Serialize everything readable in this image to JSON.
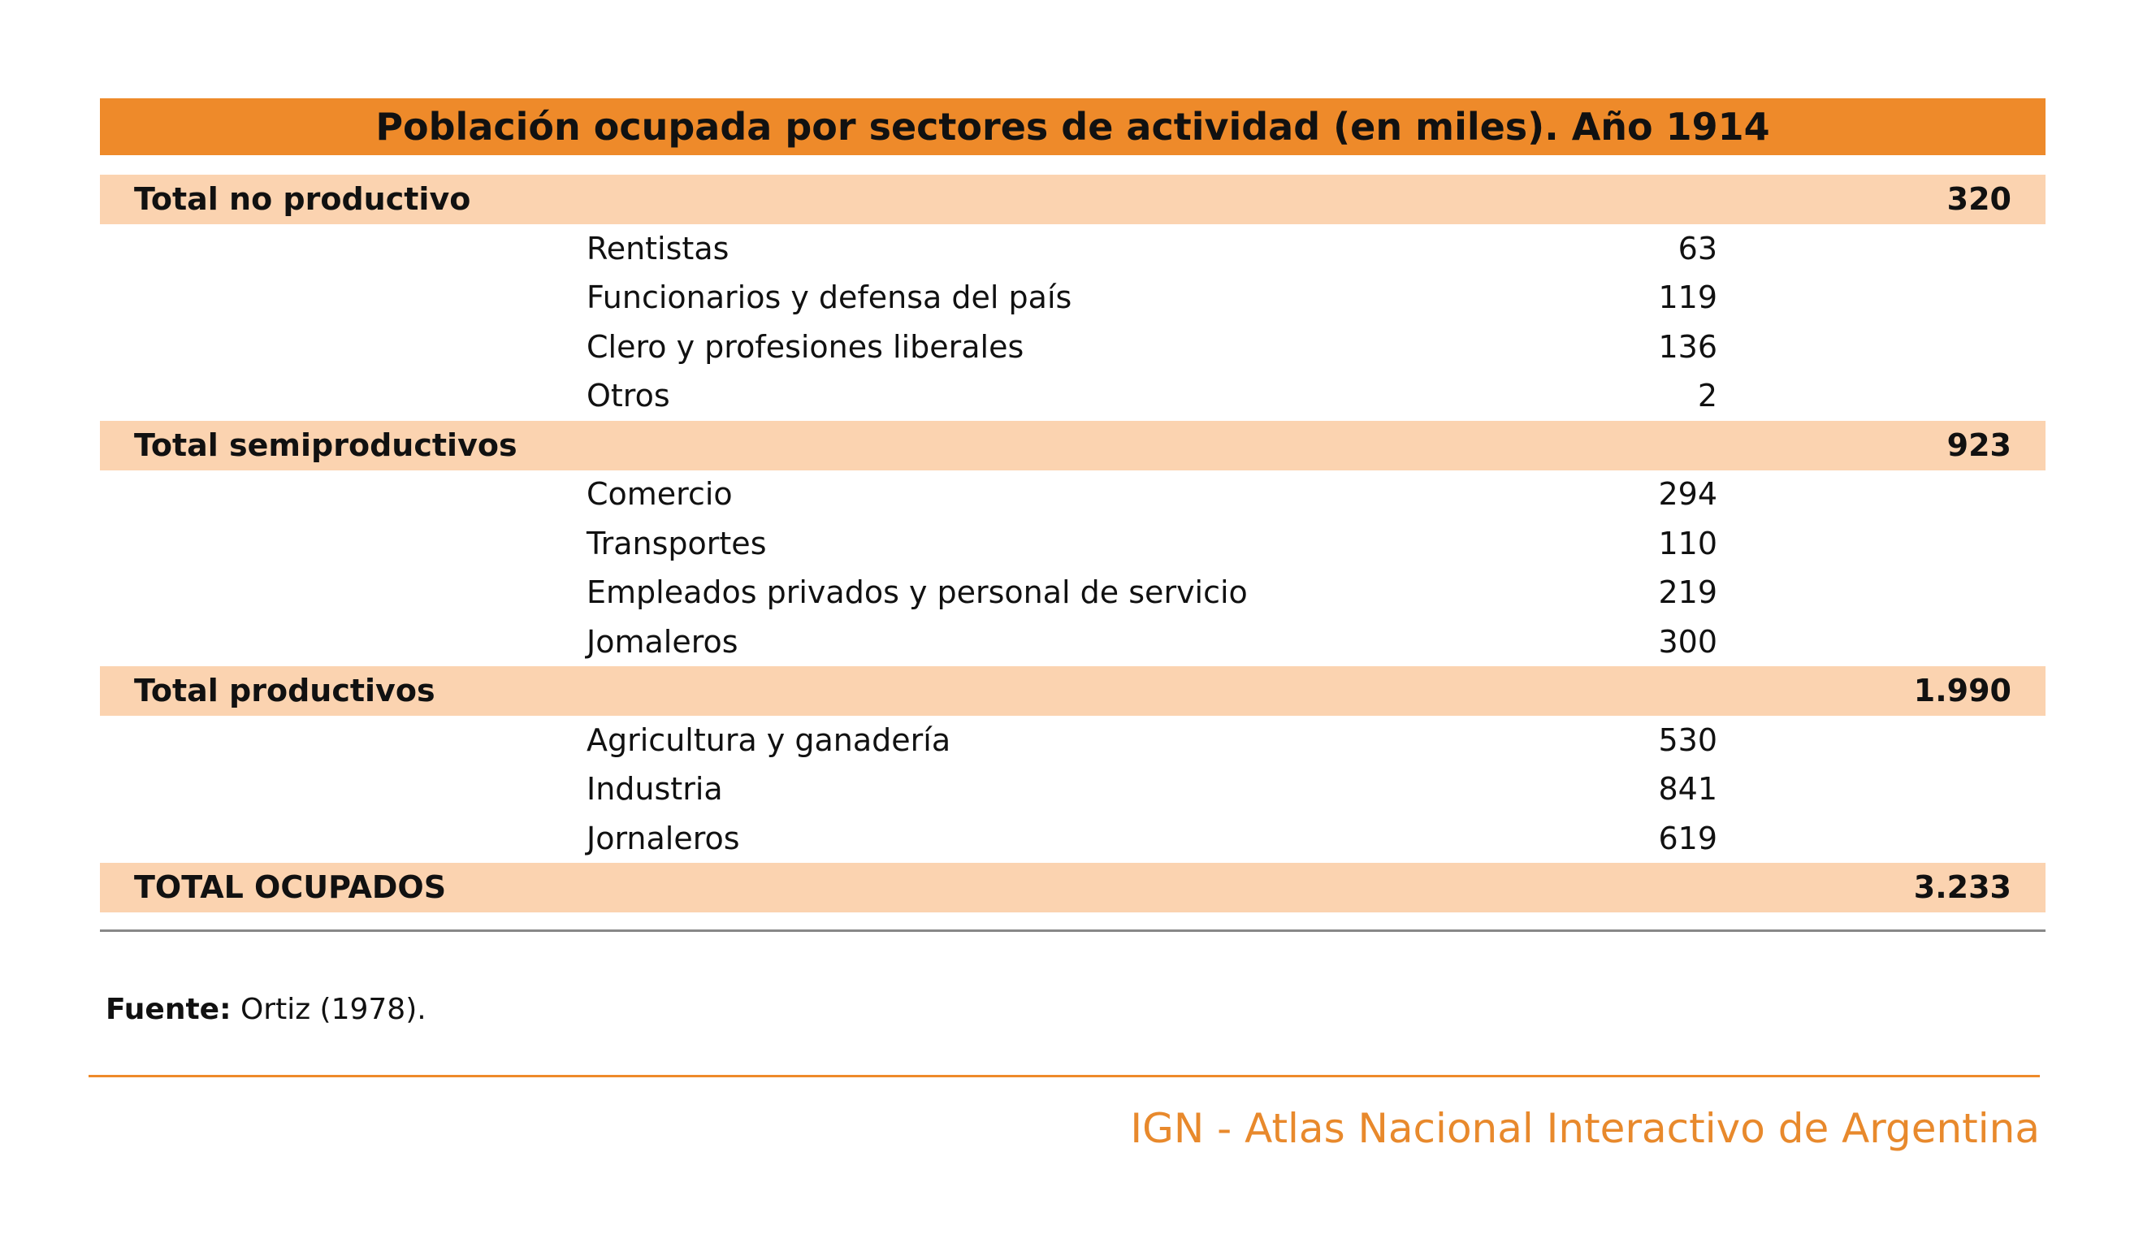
{
  "table": {
    "title": "Población ocupada por sectores de actividad (en miles). Año 1914",
    "groups": [
      {
        "label": "Total no productivo",
        "total": "320",
        "items": [
          {
            "label": "Rentistas",
            "value": "63"
          },
          {
            "label": "Funcionarios y defensa del país",
            "value": "119"
          },
          {
            "label": "Clero y profesiones liberales",
            "value": "136"
          },
          {
            "label": "Otros",
            "value": "2"
          }
        ]
      },
      {
        "label": "Total semiproductivos",
        "total": "923",
        "items": [
          {
            "label": "Comercio",
            "value": "294"
          },
          {
            "label": "Transportes",
            "value": "110"
          },
          {
            "label": "Empleados privados y personal de servicio",
            "value": "219"
          },
          {
            "label": "Jomaleros",
            "value": "300"
          }
        ]
      },
      {
        "label": "Total productivos",
        "total": "1.990",
        "items": [
          {
            "label": "Agricultura y ganadería",
            "value": "530"
          },
          {
            "label": "Industria",
            "value": "841"
          },
          {
            "label": "Jornaleros",
            "value": "619"
          }
        ]
      }
    ],
    "grand_total": {
      "label": "TOTAL OCUPADOS",
      "value": "3.233"
    }
  },
  "source": {
    "label": "Fuente:",
    "text": "Ortiz (1978)."
  },
  "footer": "IGN - Atlas Nacional Interactivo de Argentina"
}
